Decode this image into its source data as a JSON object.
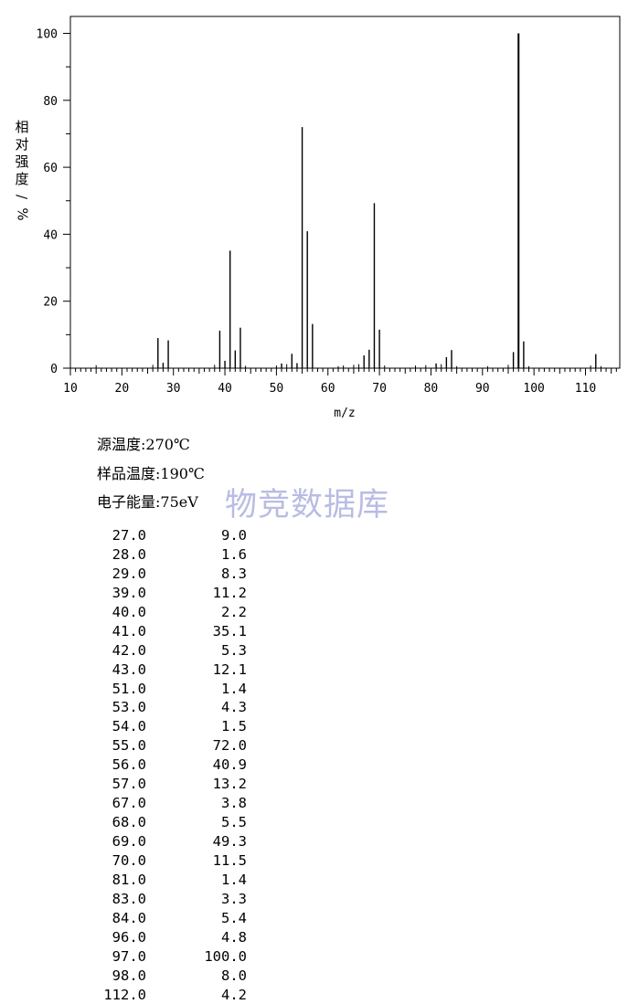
{
  "chart_data": {
    "type": "bar",
    "xlabel": "m/z",
    "ylabel": [
      "相",
      "对",
      "强",
      "度",
      "/",
      "%"
    ],
    "xlim": [
      10,
      116
    ],
    "ylim": [
      0,
      100
    ],
    "xticks": [
      10,
      20,
      30,
      40,
      50,
      60,
      70,
      80,
      90,
      100,
      110
    ],
    "yticks": [
      0,
      20,
      40,
      60,
      80,
      100
    ],
    "grid": false,
    "peaks": [
      {
        "mz": "27.0",
        "abundance": "9.0",
        "x": 27,
        "y": 9.0
      },
      {
        "mz": "28.0",
        "abundance": "1.6",
        "x": 28,
        "y": 1.6
      },
      {
        "mz": "29.0",
        "abundance": "8.3",
        "x": 29,
        "y": 8.3
      },
      {
        "mz": "39.0",
        "abundance": "11.2",
        "x": 39,
        "y": 11.2
      },
      {
        "mz": "40.0",
        "abundance": "2.2",
        "x": 40,
        "y": 2.2
      },
      {
        "mz": "41.0",
        "abundance": "35.1",
        "x": 41,
        "y": 35.1
      },
      {
        "mz": "42.0",
        "abundance": "5.3",
        "x": 42,
        "y": 5.3
      },
      {
        "mz": "43.0",
        "abundance": "12.1",
        "x": 43,
        "y": 12.1
      },
      {
        "mz": "51.0",
        "abundance": "1.4",
        "x": 51,
        "y": 1.4
      },
      {
        "mz": "53.0",
        "abundance": "4.3",
        "x": 53,
        "y": 4.3
      },
      {
        "mz": "54.0",
        "abundance": "1.5",
        "x": 54,
        "y": 1.5
      },
      {
        "mz": "55.0",
        "abundance": "72.0",
        "x": 55,
        "y": 72.0
      },
      {
        "mz": "56.0",
        "abundance": "40.9",
        "x": 56,
        "y": 40.9
      },
      {
        "mz": "57.0",
        "abundance": "13.2",
        "x": 57,
        "y": 13.2
      },
      {
        "mz": "67.0",
        "abundance": "3.8",
        "x": 67,
        "y": 3.8
      },
      {
        "mz": "68.0",
        "abundance": "5.5",
        "x": 68,
        "y": 5.5
      },
      {
        "mz": "69.0",
        "abundance": "49.3",
        "x": 69,
        "y": 49.3
      },
      {
        "mz": "70.0",
        "abundance": "11.5",
        "x": 70,
        "y": 11.5
      },
      {
        "mz": "81.0",
        "abundance": "1.4",
        "x": 81,
        "y": 1.4
      },
      {
        "mz": "83.0",
        "abundance": "3.3",
        "x": 83,
        "y": 3.3
      },
      {
        "mz": "84.0",
        "abundance": "5.4",
        "x": 84,
        "y": 5.4
      },
      {
        "mz": "96.0",
        "abundance": "4.8",
        "x": 96,
        "y": 4.8
      },
      {
        "mz": "97.0",
        "abundance": "100.0",
        "x": 97,
        "y": 100.0
      },
      {
        "mz": "98.0",
        "abundance": "8.0",
        "x": 98,
        "y": 8.0
      },
      {
        "mz": "112.0",
        "abundance": "4.2",
        "x": 112,
        "y": 4.2
      }
    ],
    "minor_peaks": [
      {
        "x": 15,
        "y": 0.9
      },
      {
        "x": 26,
        "y": 1.0
      },
      {
        "x": 38,
        "y": 1.0
      },
      {
        "x": 44,
        "y": 0.7
      },
      {
        "x": 50,
        "y": 0.8
      },
      {
        "x": 52,
        "y": 1.2
      },
      {
        "x": 62,
        "y": 0.6
      },
      {
        "x": 63,
        "y": 0.8
      },
      {
        "x": 65,
        "y": 1.0
      },
      {
        "x": 66,
        "y": 1.2
      },
      {
        "x": 71,
        "y": 0.8
      },
      {
        "x": 77,
        "y": 0.8
      },
      {
        "x": 79,
        "y": 0.9
      },
      {
        "x": 82,
        "y": 1.2
      },
      {
        "x": 85,
        "y": 0.6
      },
      {
        "x": 91,
        "y": 0.6
      },
      {
        "x": 95,
        "y": 1.0
      },
      {
        "x": 99,
        "y": 0.6
      },
      {
        "x": 111,
        "y": 0.8
      },
      {
        "x": 113,
        "y": 0.6
      }
    ]
  },
  "params": [
    "源温度:270℃",
    "样品温度:190℃",
    "电子能量:75eV"
  ],
  "watermark": "物竞数据库"
}
